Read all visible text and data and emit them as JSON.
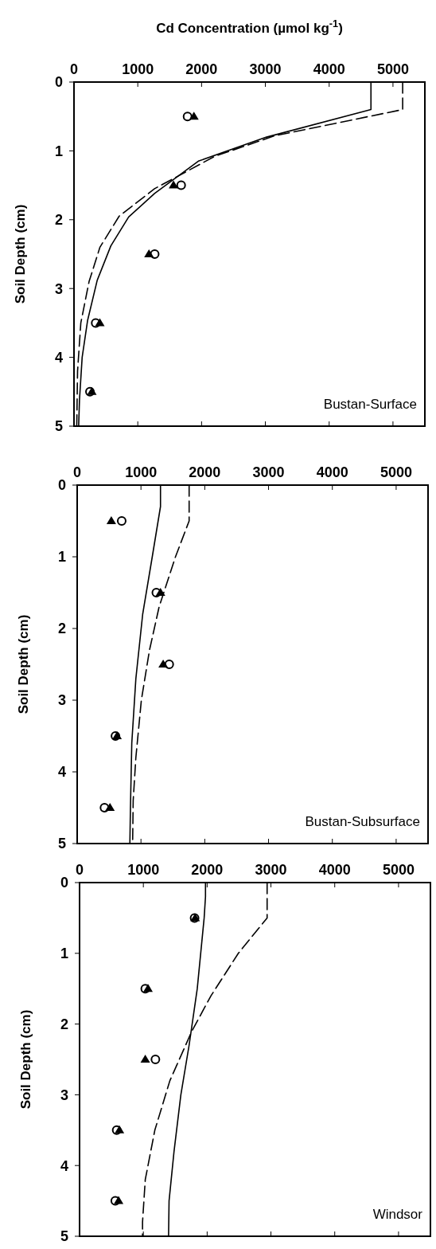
{
  "chart_data": [
    {
      "type": "scatter",
      "title": "Cd Concentration (µmol kg$^{-1}$)",
      "ylabel": "Soil Depth (cm)",
      "annotations": [
        "Bustan-Surface"
      ],
      "xlim": [
        0,
        5500
      ],
      "xticks": [
        0,
        1000,
        2000,
        3000,
        4000,
        5000
      ],
      "ylim": [
        5,
        0
      ],
      "yticks": [
        0,
        1,
        2,
        3,
        4,
        5
      ],
      "grid": false,
      "series": [
        {
          "marker": "triangle",
          "color": "#000000",
          "x": [
            1880,
            1560,
            1175,
            405,
            280
          ],
          "values": [
            0.5,
            1.5,
            2.5,
            3.5,
            4.5
          ]
        },
        {
          "marker": "circle",
          "color": "#000000",
          "x": [
            1780,
            1680,
            1265,
            340,
            250
          ],
          "values": [
            0.5,
            1.5,
            2.5,
            3.5,
            4.5
          ]
        },
        {
          "type": "line",
          "marker": "none",
          "line_style": "solid",
          "color": "#000000",
          "x": [
            4655,
            4655,
            3019,
            1949,
            1263,
            857,
            578,
            364,
            214,
            128,
            86,
            73
          ],
          "values": [
            0,
            0.4,
            0.8,
            1.15,
            1.62,
            1.96,
            2.38,
            2.88,
            3.46,
            4.0,
            4.62,
            5
          ]
        },
        {
          "type": "line",
          "marker": "none",
          "line_style": "dashed",
          "color": "#000000",
          "x": [
            5152,
            5152,
            3148,
            2205,
            1263,
            707,
            407,
            236,
            107,
            56,
            43
          ],
          "values": [
            0,
            0.4,
            0.78,
            1.08,
            1.55,
            1.95,
            2.4,
            2.9,
            3.5,
            4.2,
            5
          ]
        }
      ]
    },
    {
      "type": "scatter",
      "ylabel": "Soil Depth (cm)",
      "annotations": [
        "Bustan-Subsurface"
      ],
      "xlim": [
        0,
        5500
      ],
      "xticks": [
        0,
        1000,
        2000,
        3000,
        4000,
        5000
      ],
      "ylim": [
        5,
        0
      ],
      "yticks": [
        0,
        1,
        2,
        3,
        4,
        5
      ],
      "grid": false,
      "series": [
        {
          "marker": "triangle",
          "color": "#000000",
          "x": [
            535,
            1306,
            1348,
            625,
            514
          ],
          "values": [
            0.5,
            1.5,
            2.5,
            3.5,
            4.5
          ]
        },
        {
          "marker": "circle",
          "color": "#000000",
          "x": [
            698,
            1241,
            1443,
            600,
            428
          ],
          "values": [
            0.5,
            1.5,
            2.5,
            3.5,
            4.5
          ]
        },
        {
          "type": "line",
          "marker": "none",
          "line_style": "solid",
          "color": "#000000",
          "x": [
            1306,
            1306,
            1177,
            1027,
            920,
            856,
            835,
            826
          ],
          "values": [
            0,
            0.3,
            1.0,
            1.8,
            2.7,
            3.6,
            4.5,
            5
          ]
        },
        {
          "type": "line",
          "marker": "none",
          "line_style": "dashed",
          "color": "#000000",
          "x": [
            1755,
            1755,
            1541,
            1284,
            1134,
            1006,
            920,
            878,
            869
          ],
          "values": [
            0,
            0.5,
            1.0,
            1.7,
            2.3,
            3.0,
            3.8,
            4.4,
            5
          ]
        }
      ]
    },
    {
      "type": "scatter",
      "ylabel": "Soil Depth (cm)",
      "annotations": [
        "Windsor"
      ],
      "xlim": [
        0,
        5500
      ],
      "xticks": [
        0,
        1000,
        2000,
        3000,
        4000,
        5000
      ],
      "ylim": [
        5,
        0
      ],
      "yticks": [
        0,
        1,
        2,
        3,
        4,
        5
      ],
      "grid": false,
      "series": [
        {
          "marker": "triangle",
          "color": "#000000",
          "x": [
            1812,
            1073,
            1030,
            625,
            612
          ],
          "values": [
            0.5,
            1.5,
            2.5,
            3.5,
            4.5
          ]
        },
        {
          "marker": "circle",
          "color": "#000000",
          "x": [
            1803,
            1030,
            1189,
            582,
            560
          ],
          "values": [
            0.5,
            1.5,
            2.5,
            3.5,
            4.5
          ]
        },
        {
          "type": "line",
          "marker": "none",
          "line_style": "solid",
          "color": "#000000",
          "x": [
            1974,
            1974,
            1953,
            1845,
            1717,
            1588,
            1481,
            1403,
            1395
          ],
          "values": [
            0,
            0.2,
            0.5,
            1.5,
            2.3,
            3.0,
            3.8,
            4.5,
            5
          ]
        },
        {
          "type": "line",
          "marker": "none",
          "line_style": "dashed",
          "color": "#000000",
          "x": [
            2940,
            2940,
            2489,
            2060,
            1760,
            1416,
            1180,
            1030,
            987,
            987
          ],
          "values": [
            0,
            0.5,
            1.0,
            1.6,
            2.1,
            2.8,
            3.5,
            4.2,
            4.8,
            5
          ]
        }
      ]
    }
  ]
}
